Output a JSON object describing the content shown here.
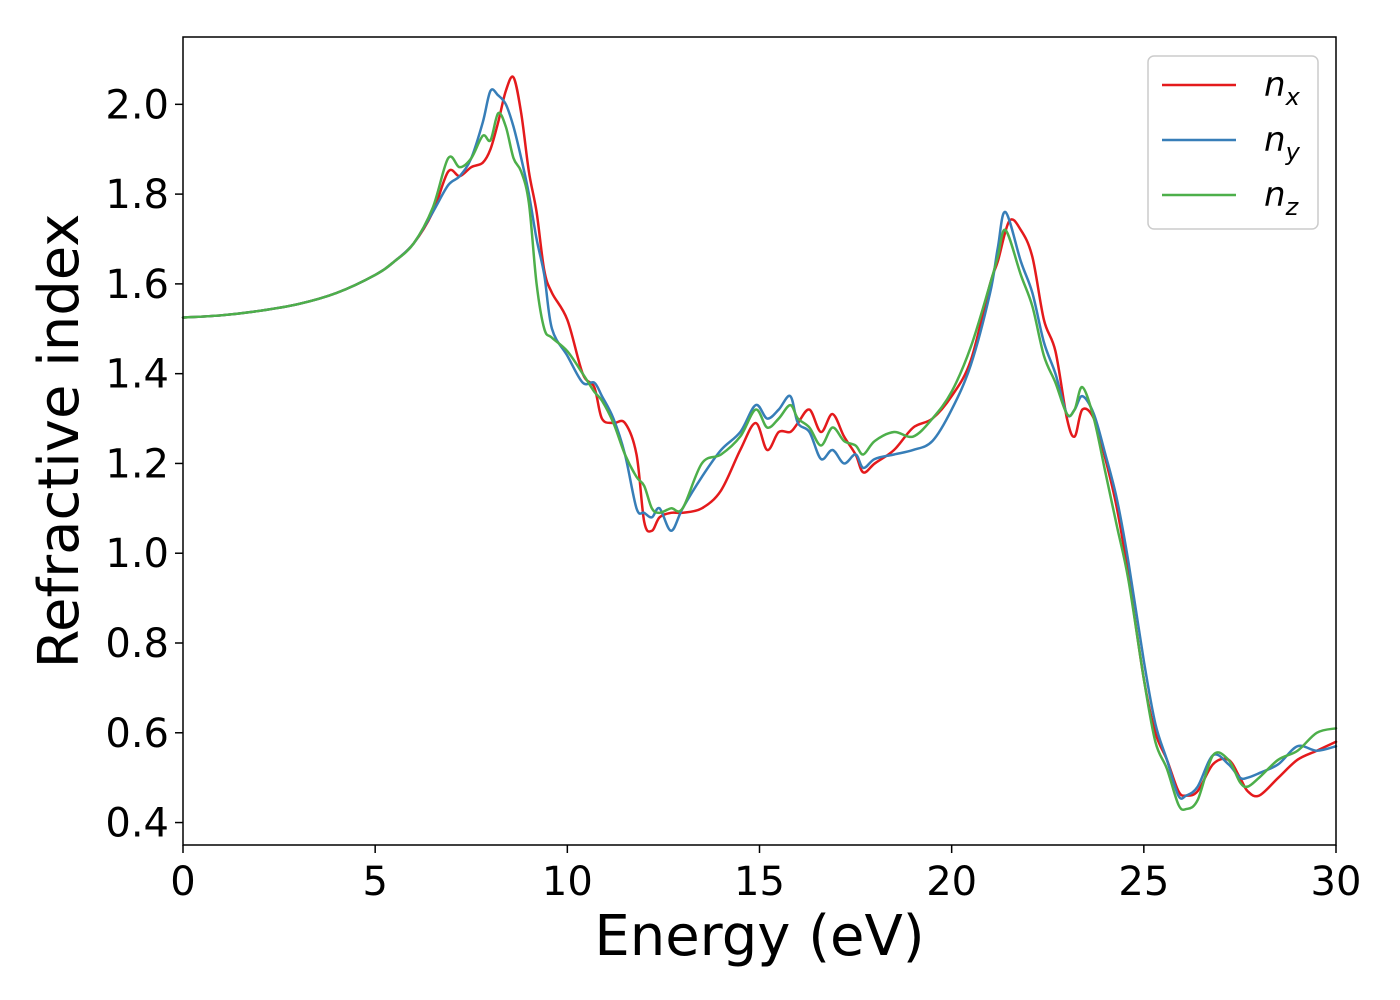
{
  "chart_data": {
    "type": "line",
    "xlabel": "Energy (eV)",
    "ylabel": "Refractive index",
    "xlim": [
      0,
      30
    ],
    "ylim": [
      0.35,
      2.15
    ],
    "xticks": [
      "0",
      "5",
      "10",
      "15",
      "20",
      "25",
      "30"
    ],
    "yticks": [
      "0.4",
      "0.6",
      "0.8",
      "1.0",
      "1.2",
      "1.4",
      "1.6",
      "1.8",
      "2.0"
    ],
    "grid": false,
    "legend_position": "top-right",
    "series": [
      {
        "name": "n",
        "subscript": "x",
        "color": "#e41a1c",
        "x": [
          0,
          1,
          2,
          3,
          4,
          5,
          5.5,
          6,
          6.5,
          6.9,
          7.2,
          7.5,
          7.8,
          8.0,
          8.2,
          8.4,
          8.6,
          8.8,
          9.0,
          9.2,
          9.4,
          9.6,
          10.0,
          10.4,
          10.7,
          10.9,
          11.2,
          11.5,
          11.8,
          12.0,
          12.2,
          12.4,
          12.7,
          13.0,
          13.5,
          14.0,
          14.5,
          14.9,
          15.2,
          15.5,
          15.8,
          16.0,
          16.3,
          16.6,
          16.9,
          17.2,
          17.5,
          17.7,
          18.0,
          18.5,
          19.0,
          19.5,
          20.0,
          20.5,
          21.0,
          21.2,
          21.5,
          21.8,
          22.1,
          22.4,
          22.7,
          23.0,
          23.2,
          23.4,
          23.7,
          24.0,
          24.3,
          24.6,
          25.0,
          25.3,
          25.6,
          25.9,
          26.1,
          26.4,
          26.8,
          27.2,
          27.5,
          27.7,
          28.0,
          28.5,
          29.0,
          29.5,
          30.0
        ],
        "values": [
          1.525,
          1.53,
          1.54,
          1.555,
          1.58,
          1.62,
          1.65,
          1.69,
          1.76,
          1.85,
          1.84,
          1.86,
          1.87,
          1.9,
          1.96,
          2.03,
          2.06,
          1.98,
          1.85,
          1.76,
          1.63,
          1.58,
          1.52,
          1.4,
          1.37,
          1.3,
          1.29,
          1.29,
          1.22,
          1.07,
          1.05,
          1.08,
          1.09,
          1.09,
          1.1,
          1.14,
          1.23,
          1.29,
          1.23,
          1.27,
          1.27,
          1.29,
          1.32,
          1.27,
          1.31,
          1.26,
          1.22,
          1.18,
          1.2,
          1.23,
          1.28,
          1.3,
          1.35,
          1.43,
          1.6,
          1.65,
          1.74,
          1.72,
          1.66,
          1.52,
          1.45,
          1.3,
          1.26,
          1.32,
          1.3,
          1.21,
          1.1,
          0.95,
          0.72,
          0.6,
          0.54,
          0.47,
          0.46,
          0.47,
          0.53,
          0.54,
          0.5,
          0.47,
          0.46,
          0.5,
          0.54,
          0.56,
          0.58
        ]
      },
      {
        "name": "n",
        "subscript": "y",
        "color": "#377eb8",
        "x": [
          0,
          1,
          2,
          3,
          4,
          5,
          5.5,
          6,
          6.5,
          6.9,
          7.2,
          7.5,
          7.8,
          8.0,
          8.2,
          8.4,
          8.6,
          8.8,
          9.0,
          9.2,
          9.4,
          9.6,
          10.0,
          10.4,
          10.7,
          10.9,
          11.2,
          11.5,
          11.8,
          12.0,
          12.2,
          12.4,
          12.7,
          13.0,
          13.5,
          14.0,
          14.5,
          14.9,
          15.2,
          15.5,
          15.8,
          16.0,
          16.3,
          16.6,
          16.9,
          17.2,
          17.5,
          17.7,
          18.0,
          18.5,
          19.0,
          19.5,
          20.0,
          20.5,
          21.0,
          21.2,
          21.4,
          21.8,
          22.1,
          22.4,
          22.7,
          23.0,
          23.2,
          23.4,
          23.7,
          24.0,
          24.3,
          24.6,
          25.0,
          25.3,
          25.6,
          25.9,
          26.1,
          26.4,
          26.8,
          27.2,
          27.5,
          27.7,
          28.0,
          28.5,
          29.0,
          29.5,
          30.0
        ],
        "values": [
          1.525,
          1.53,
          1.54,
          1.555,
          1.58,
          1.62,
          1.65,
          1.69,
          1.76,
          1.82,
          1.84,
          1.88,
          1.96,
          2.03,
          2.02,
          2.0,
          1.95,
          1.88,
          1.8,
          1.7,
          1.62,
          1.5,
          1.44,
          1.38,
          1.38,
          1.35,
          1.3,
          1.22,
          1.1,
          1.09,
          1.08,
          1.1,
          1.05,
          1.1,
          1.17,
          1.23,
          1.27,
          1.33,
          1.3,
          1.32,
          1.35,
          1.29,
          1.27,
          1.21,
          1.23,
          1.2,
          1.22,
          1.19,
          1.21,
          1.22,
          1.23,
          1.25,
          1.32,
          1.42,
          1.58,
          1.68,
          1.76,
          1.65,
          1.58,
          1.47,
          1.4,
          1.31,
          1.32,
          1.35,
          1.31,
          1.22,
          1.12,
          0.98,
          0.76,
          0.62,
          0.54,
          0.46,
          0.46,
          0.48,
          0.55,
          0.53,
          0.5,
          0.5,
          0.51,
          0.53,
          0.57,
          0.56,
          0.57
        ]
      },
      {
        "name": "n",
        "subscript": "z",
        "color": "#4daf4a",
        "x": [
          0,
          1,
          2,
          3,
          4,
          5,
          5.5,
          6,
          6.5,
          6.9,
          7.2,
          7.5,
          7.8,
          8.0,
          8.2,
          8.4,
          8.6,
          8.8,
          9.0,
          9.2,
          9.4,
          9.6,
          10.0,
          10.4,
          10.7,
          10.9,
          11.2,
          11.5,
          11.8,
          12.0,
          12.2,
          12.4,
          12.7,
          13.0,
          13.5,
          14.0,
          14.5,
          14.9,
          15.2,
          15.5,
          15.8,
          16.0,
          16.3,
          16.6,
          16.9,
          17.2,
          17.5,
          17.7,
          18.0,
          18.5,
          19.0,
          19.5,
          20.0,
          20.5,
          21.0,
          21.2,
          21.4,
          21.8,
          22.1,
          22.4,
          22.7,
          23.0,
          23.2,
          23.4,
          23.7,
          24.0,
          24.3,
          24.6,
          25.0,
          25.3,
          25.6,
          25.9,
          26.1,
          26.4,
          26.8,
          27.2,
          27.5,
          27.7,
          28.0,
          28.5,
          29.0,
          29.5,
          30.0
        ],
        "values": [
          1.525,
          1.53,
          1.54,
          1.555,
          1.58,
          1.62,
          1.65,
          1.69,
          1.77,
          1.88,
          1.86,
          1.88,
          1.93,
          1.92,
          1.98,
          1.95,
          1.88,
          1.85,
          1.78,
          1.6,
          1.5,
          1.48,
          1.45,
          1.4,
          1.36,
          1.34,
          1.29,
          1.22,
          1.17,
          1.15,
          1.1,
          1.09,
          1.1,
          1.1,
          1.2,
          1.22,
          1.26,
          1.32,
          1.28,
          1.3,
          1.33,
          1.3,
          1.28,
          1.24,
          1.28,
          1.25,
          1.24,
          1.22,
          1.25,
          1.27,
          1.26,
          1.3,
          1.36,
          1.46,
          1.6,
          1.66,
          1.72,
          1.62,
          1.55,
          1.44,
          1.38,
          1.31,
          1.32,
          1.37,
          1.3,
          1.18,
          1.06,
          0.94,
          0.72,
          0.58,
          0.52,
          0.44,
          0.43,
          0.45,
          0.55,
          0.54,
          0.49,
          0.48,
          0.5,
          0.54,
          0.56,
          0.6,
          0.61
        ]
      }
    ]
  }
}
